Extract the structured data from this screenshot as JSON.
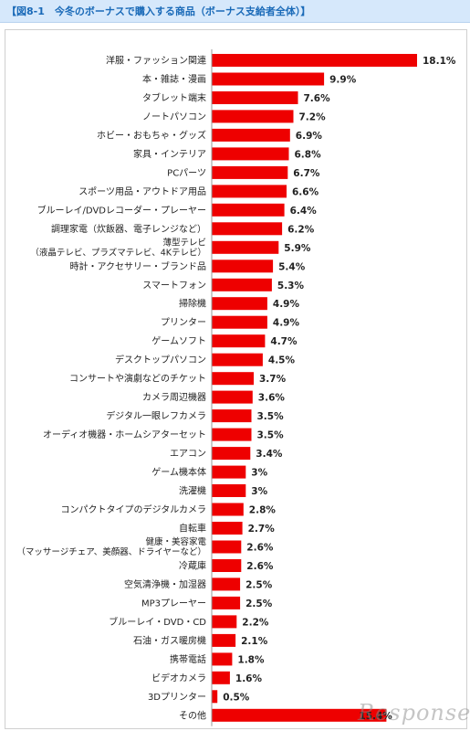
{
  "header": {
    "title": "【図8-1　今冬のボーナスで購入する商品（ボーナス支給者全体）】"
  },
  "colors": {
    "bar": "#ee0000",
    "title": "#1a6ab8",
    "title_bg": "#d6e8fb"
  },
  "watermark": "Response.",
  "chart_data": {
    "type": "bar",
    "orientation": "horizontal",
    "title": "今冬のボーナスで購入する商品（ボーナス支給者全体）",
    "unit": "%",
    "grid": false,
    "legend": "none",
    "xlim": [
      0,
      20
    ],
    "categories": [
      "洋服・ファッション関連",
      "本・雑誌・漫画",
      "タブレット端末",
      "ノートパソコン",
      "ホビー・おもちゃ・グッズ",
      "家具・インテリア",
      "PCパーツ",
      "スポーツ用品・アウトドア用品",
      "ブルーレイ/DVDレコーダー・プレーヤー",
      "調理家電（炊飯器、電子レンジなど）",
      "薄型テレビ\n（液晶テレビ、プラズマテレビ、4Kテレビ）",
      "時計・アクセサリー・ブランド品",
      "スマートフォン",
      "掃除機",
      "プリンター",
      "ゲームソフト",
      "デスクトップパソコン",
      "コンサートや演劇などのチケット",
      "カメラ周辺機器",
      "デジタル一眼レフカメラ",
      "オーディオ機器・ホームシアターセット",
      "エアコン",
      "ゲーム機本体",
      "洗濯機",
      "コンパクトタイプのデジタルカメラ",
      "自転車",
      "健康・美容家電\n（マッサージチェア、美顔器、ドライヤーなど）",
      "冷蔵庫",
      "空気清浄機・加湿器",
      "MP3プレーヤー",
      "ブルーレイ・DVD・CD",
      "石油・ガス暖房機",
      "携帯電話",
      "ビデオカメラ",
      "3Dプリンター",
      "その他"
    ],
    "values": [
      18.1,
      9.9,
      7.6,
      7.2,
      6.9,
      6.8,
      6.7,
      6.6,
      6.4,
      6.2,
      5.9,
      5.4,
      5.3,
      4.9,
      4.9,
      4.7,
      4.5,
      3.7,
      3.6,
      3.5,
      3.5,
      3.4,
      3,
      3,
      2.8,
      2.7,
      2.6,
      2.6,
      2.5,
      2.5,
      2.2,
      2.1,
      1.8,
      1.6,
      0.5,
      15.4
    ],
    "data_labels": [
      "18.1%",
      "9.9%",
      "7.6%",
      "7.2%",
      "6.9%",
      "6.8%",
      "6.7%",
      "6.6%",
      "6.4%",
      "6.2%",
      "5.9%",
      "5.4%",
      "5.3%",
      "4.9%",
      "4.9%",
      "4.7%",
      "4.5%",
      "3.7%",
      "3.6%",
      "3.5%",
      "3.5%",
      "3.4%",
      "3%",
      "3%",
      "2.8%",
      "2.7%",
      "2.6%",
      "2.6%",
      "2.5%",
      "2.5%",
      "2.2%",
      "2.1%",
      "1.8%",
      "1.6%",
      "0.5%",
      "15.4%"
    ]
  }
}
